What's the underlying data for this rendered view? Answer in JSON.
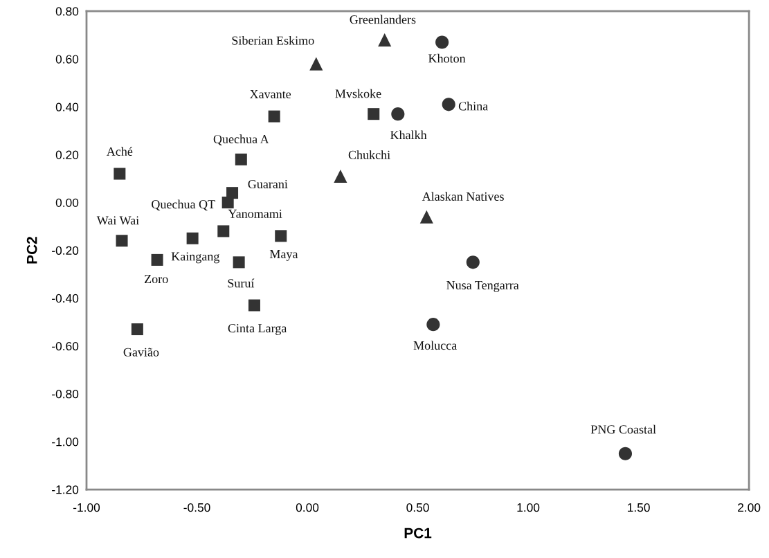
{
  "chart_data": {
    "type": "scatter",
    "xlabel": "PC1",
    "ylabel": "PC2",
    "xlim": [
      -1.0,
      2.0
    ],
    "xticks": [
      {
        "value": -1.0,
        "label": "-1.00"
      },
      {
        "value": -0.5,
        "label": "-0.50"
      },
      {
        "value": 0,
        "label": "0.00"
      },
      {
        "value": 0.5,
        "label": "0.50"
      },
      {
        "value": 1.0,
        "label": "1.00"
      },
      {
        "value": 1.5,
        "label": "1.50"
      },
      {
        "value": 2.0,
        "label": "2.00"
      }
    ],
    "ylim": [
      -1.2,
      0.8
    ],
    "yticks": [
      {
        "value": -1.2,
        "label": "-1.20"
      },
      {
        "value": -1.0,
        "label": "-1.00"
      },
      {
        "value": -0.8,
        "label": "-0.80"
      },
      {
        "value": -0.6,
        "label": "-0.60"
      },
      {
        "value": -0.4,
        "label": "-0.40"
      },
      {
        "value": -0.2,
        "label": "-0.20"
      },
      {
        "value": 0,
        "label": "0.00"
      },
      {
        "value": 0.2,
        "label": "0.20"
      },
      {
        "value": 0.4,
        "label": "0.40"
      },
      {
        "value": 0.6,
        "label": "0.60"
      },
      {
        "value": 0.8,
        "label": "0.80"
      }
    ],
    "grid": false,
    "legend": false,
    "series": [
      {
        "color": "#333333",
        "marker": "square",
        "x": [
          -0.85,
          -0.15,
          -0.3,
          -0.34,
          -0.36,
          -0.38,
          -0.84,
          -0.52,
          -0.12,
          -0.68,
          -0.31,
          -0.24,
          -0.77,
          0.3
        ],
        "values": [
          0.12,
          0.36,
          0.18,
          0.04,
          0.0,
          -0.12,
          -0.16,
          -0.15,
          -0.14,
          -0.24,
          -0.25,
          -0.43,
          -0.53,
          0.37
        ]
      },
      {
        "color": "#333333",
        "marker": "triangle",
        "x": [
          0.04,
          0.35,
          0.15,
          0.54
        ],
        "values": [
          0.58,
          0.68,
          0.11,
          -0.06
        ]
      },
      {
        "color": "#333333",
        "marker": "circle",
        "x": [
          0.61,
          0.41,
          0.64,
          0.75,
          0.57,
          1.44
        ],
        "values": [
          0.67,
          0.37,
          0.41,
          -0.25,
          -0.51,
          -1.05
        ]
      }
    ],
    "annotations": [
      {
        "text": "Aché",
        "x": -0.85,
        "y": 0.12
      },
      {
        "text": "Xavante",
        "x": -0.15,
        "y": 0.36
      },
      {
        "text": "Quechua A",
        "x": -0.3,
        "y": 0.18
      },
      {
        "text": "Guarani",
        "x": -0.34,
        "y": 0.04
      },
      {
        "text": "Quechua QT",
        "x": -0.36,
        "y": 0.0
      },
      {
        "text": "Yanomami",
        "x": -0.38,
        "y": -0.12
      },
      {
        "text": "Wai Wai",
        "x": -0.84,
        "y": -0.16
      },
      {
        "text": "Kaingang",
        "x": -0.52,
        "y": -0.15
      },
      {
        "text": "Maya",
        "x": -0.12,
        "y": -0.14
      },
      {
        "text": "Zoro",
        "x": -0.68,
        "y": -0.24
      },
      {
        "text": "Suruí",
        "x": -0.31,
        "y": -0.25
      },
      {
        "text": "Cinta Larga",
        "x": -0.24,
        "y": -0.43
      },
      {
        "text": "Gavião",
        "x": -0.77,
        "y": -0.53
      },
      {
        "text": "Mvskoke",
        "x": 0.3,
        "y": 0.37
      },
      {
        "text": "Siberian Eskimo",
        "x": 0.04,
        "y": 0.58
      },
      {
        "text": "Greenlanders",
        "x": 0.35,
        "y": 0.68
      },
      {
        "text": "Chukchi",
        "x": 0.15,
        "y": 0.11
      },
      {
        "text": "Alaskan Natives",
        "x": 0.54,
        "y": -0.06
      },
      {
        "text": "Khoton",
        "x": 0.61,
        "y": 0.67
      },
      {
        "text": "Khalkh",
        "x": 0.41,
        "y": 0.37
      },
      {
        "text": "China",
        "x": 0.64,
        "y": 0.41
      },
      {
        "text": "Nusa Tengarra",
        "x": 0.75,
        "y": -0.25
      },
      {
        "text": "Molucca",
        "x": 0.57,
        "y": -0.51
      },
      {
        "text": "PNG Coastal",
        "x": 1.44,
        "y": -1.05
      }
    ]
  }
}
